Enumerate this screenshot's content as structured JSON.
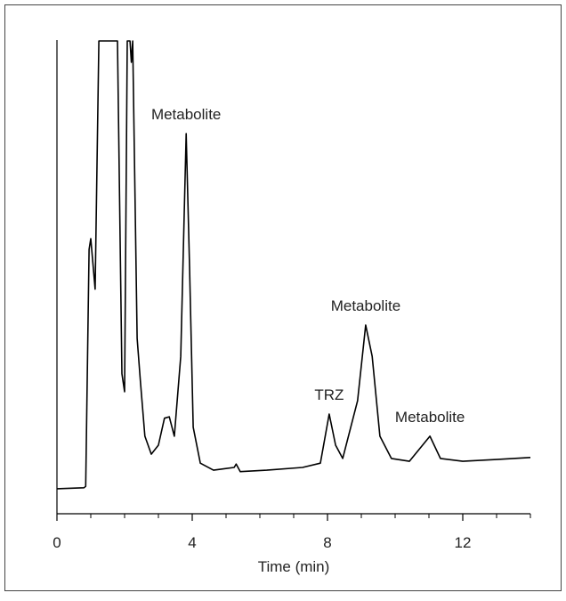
{
  "chart_data": {
    "type": "line",
    "xlabel": "Time (min)",
    "x": [
      0,
      0.8,
      0.85,
      0.95,
      1.0,
      1.13,
      1.24,
      1.79,
      1.92,
      2.0,
      2.08,
      2.16,
      2.2,
      2.24,
      2.37,
      2.47,
      2.6,
      2.79,
      3.0,
      3.18,
      3.32,
      3.47,
      3.66,
      3.82,
      3.92,
      4.03,
      4.24,
      4.63,
      5.24,
      5.3,
      5.42,
      6.2,
      7.26,
      7.79,
      8.05,
      8.24,
      8.45,
      8.89,
      9.13,
      9.32,
      9.55,
      9.89,
      10.42,
      11.03,
      11.34,
      12.0,
      13.05,
      14
    ],
    "values": [
      5.3,
      5.5,
      5.8,
      55.9,
      58.2,
      47.5,
      100,
      100,
      29.6,
      25.8,
      100,
      100,
      95.5,
      100,
      37.1,
      27.7,
      16.4,
      12.6,
      14.5,
      20.2,
      20.5,
      16.4,
      33.3,
      80.4,
      52.2,
      18.3,
      10.7,
      9.2,
      9.8,
      10.5,
      8.9,
      9.2,
      9.8,
      10.7,
      21.1,
      14.5,
      11.7,
      23.9,
      39.9,
      33.3,
      16.4,
      11.7,
      11.1,
      16.4,
      11.7,
      11.1,
      11.5,
      11.9
    ],
    "color": "#000000",
    "xlim": [
      0,
      14
    ],
    "ylim": [
      0,
      100
    ],
    "xticks": [
      0,
      4,
      8,
      12
    ],
    "xminorticks": [
      1,
      2,
      3,
      5,
      6,
      7,
      9,
      10,
      11,
      13,
      14
    ],
    "annotations": [
      {
        "text": "Metabolite",
        "x": 3.82
      },
      {
        "text": "TRZ",
        "x": 8.05
      },
      {
        "text": "Metabolite",
        "x": 9.13
      },
      {
        "text": "Metabolite",
        "x": 11.03
      }
    ]
  }
}
